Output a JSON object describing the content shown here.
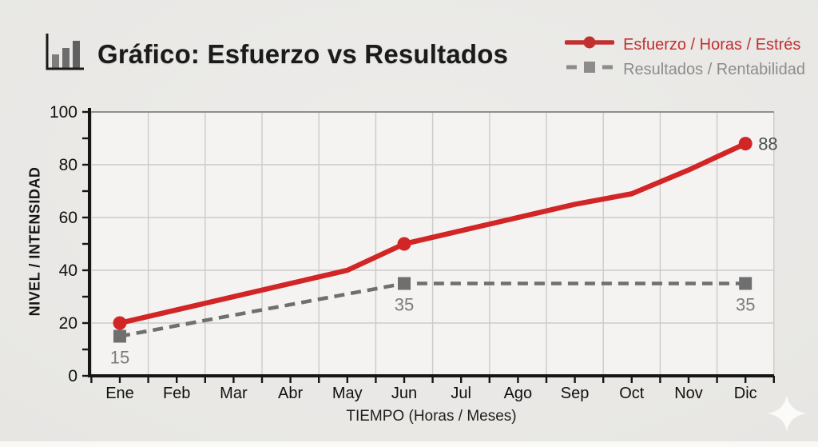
{
  "header": {
    "title": "Gráfico: Esfuerzo vs Resultados",
    "icon": "bar-chart-icon"
  },
  "legend": [
    {
      "label": "Esfuerzo / Horas / Estrés",
      "color": "#c22f2f",
      "marker": "circle",
      "line": "solid"
    },
    {
      "label": "Resultados / Rentabilidad",
      "color": "#8c8c8c",
      "marker": "square",
      "line": "dashed"
    }
  ],
  "chart_data": {
    "type": "line",
    "title": "Gráfico: Esfuerzo vs Resultados",
    "xlabel": "TIEMPO (Horas / Meses)",
    "ylabel": "NIVEL / INTENSIDAD",
    "categories": [
      "Ene",
      "Feb",
      "Mar",
      "Abr",
      "May",
      "Jun",
      "Jul",
      "Ago",
      "Sep",
      "Oct",
      "Nov",
      "Dic"
    ],
    "series": [
      {
        "id": "esfuerzo",
        "name": "Esfuerzo / Horas / Estrés",
        "color": "#d22525",
        "style": "solid",
        "marker": "circle",
        "marker_at": [
          0,
          5,
          11
        ],
        "values": [
          20,
          25,
          30,
          35,
          40,
          50,
          55,
          60,
          65,
          69,
          78,
          88
        ]
      },
      {
        "id": "resultados",
        "name": "Resultados / Rentabilidad",
        "color": "#6f6f6f",
        "style": "dashed",
        "marker": "square",
        "marker_at": [
          0,
          5,
          11
        ],
        "values": [
          15,
          19,
          23,
          27,
          31,
          35,
          35,
          35,
          35,
          35,
          35,
          35
        ]
      }
    ],
    "point_labels": [
      {
        "series": 1,
        "index": 0,
        "text": "15",
        "position": "below",
        "color": "#7b7b7b"
      },
      {
        "series": 1,
        "index": 5,
        "text": "35",
        "position": "below",
        "color": "#7b7b7b"
      },
      {
        "series": 1,
        "index": 11,
        "text": "35",
        "position": "below",
        "color": "#7b7b7b"
      },
      {
        "series": 0,
        "index": 11,
        "text": "88",
        "position": "right",
        "color": "#4e4e4e"
      }
    ],
    "ylim": [
      0,
      100
    ],
    "yticks": [
      0,
      20,
      40,
      60,
      80,
      100
    ],
    "minor_ytick_step": 10,
    "grid": true,
    "legend_position": "top-right"
  },
  "icons": {
    "header": "bar-chart-icon",
    "watermark": "sparkle-icon"
  }
}
